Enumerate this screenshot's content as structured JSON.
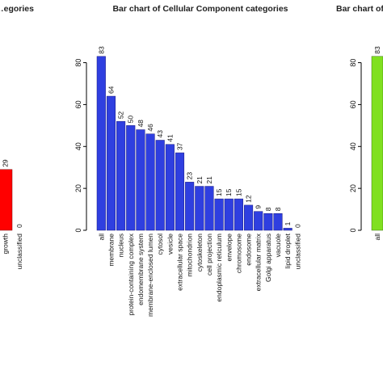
{
  "chart_data": [
    {
      "type": "bar",
      "title": "…egories",
      "categories": [
        "growth",
        "unclassified"
      ],
      "values": [
        29,
        0
      ],
      "bar_color": "#ff0000",
      "ylim": [
        0,
        86
      ]
    },
    {
      "type": "bar",
      "title": "Bar chart of Cellular Component categories",
      "xlabel": "",
      "ylabel": "",
      "ylim": [
        0,
        86
      ],
      "yticks": [
        0,
        20,
        40,
        60,
        80
      ],
      "bar_color": "#2f3fe0",
      "categories": [
        "all",
        "membrane",
        "nucleus",
        "protein-containing complex",
        "endomembrane system",
        "membrane-enclosed lumen",
        "cytosol",
        "vesicle",
        "extracellular space",
        "mitochondrion",
        "cytoskeleton",
        "cell projection",
        "endoplasmic reticulum",
        "envelope",
        "chromosome",
        "endosome",
        "extracellular matrix",
        "Golgi apparatus",
        "vacuole",
        "lipid droplet",
        "unclassified"
      ],
      "values": [
        83,
        64,
        52,
        50,
        48,
        46,
        43,
        41,
        37,
        23,
        21,
        21,
        15,
        15,
        15,
        12,
        9,
        8,
        8,
        1,
        0
      ]
    },
    {
      "type": "bar",
      "title": "Bar chart of …",
      "categories": [
        "all"
      ],
      "values": [
        83
      ],
      "yticks": [
        0,
        20,
        40,
        60,
        80
      ],
      "bar_color": "#80e020",
      "ylim": [
        0,
        86
      ]
    }
  ]
}
